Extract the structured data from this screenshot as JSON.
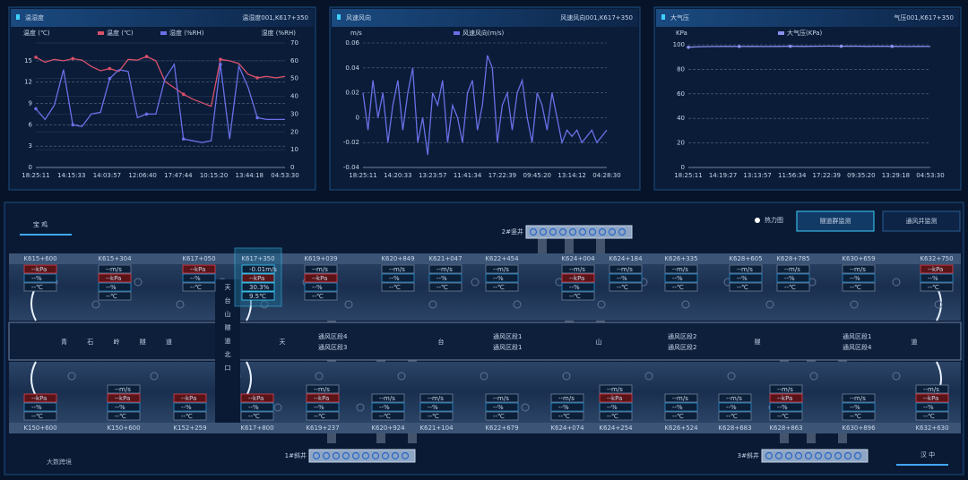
{
  "charts": [
    {
      "type": "line",
      "title": "温湿度",
      "device": "温湿度001,K617+350",
      "ylabel": "温度 (℃)",
      "y2label": "湿度 (%RH)",
      "xticks": [
        "18:25:11",
        "14:15:33",
        "14:03:57",
        "12:06:40",
        "17:47:44",
        "10:15:20",
        "13:44:18",
        "04:53:30"
      ],
      "ylim": [
        0,
        17.5
      ],
      "yticks": [
        0,
        3,
        6,
        9,
        12,
        15
      ],
      "y2lim": [
        0,
        70
      ],
      "y2ticks": [
        0,
        10,
        20,
        30,
        40,
        50,
        60,
        70
      ],
      "grid": true,
      "series": [
        {
          "name": "温度 (℃)",
          "color": "#d9506a",
          "values": [
            15.5,
            14.8,
            15.2,
            15,
            15.3,
            15.1,
            14.2,
            13.6,
            13.9,
            13.5,
            15.2,
            15.1,
            15.6,
            15.0,
            12.1,
            11.2,
            10.3,
            9.6,
            9.1,
            8.6,
            15.2,
            15.0,
            14.6,
            13.1,
            12.6,
            12.8,
            12.6,
            12.8
          ]
        },
        {
          "name": "湿度 (%RH)",
          "color": "#6a70e6",
          "axis": "y2",
          "values": [
            33,
            27,
            35,
            55,
            24,
            23,
            30,
            31,
            50,
            55,
            54,
            28,
            30,
            30,
            50,
            58,
            16,
            15,
            14,
            15,
            58,
            16,
            57,
            45,
            28,
            27,
            27,
            27
          ]
        }
      ]
    },
    {
      "type": "line",
      "title": "风速风向",
      "device": "风速风向001,K617+350",
      "ylabel": "m/s",
      "xticks": [
        "18:25:11",
        "14:20:33",
        "13:23:57",
        "11:41:34",
        "17:22:39",
        "09:45:20",
        "13:14:12",
        "04:28:30"
      ],
      "ylim": [
        -0.04,
        0.06
      ],
      "yticks": [
        -0.04,
        -0.02,
        0,
        0.02,
        0.04,
        0.06
      ],
      "grid": true,
      "series": [
        {
          "name": "风速风向(m/s)",
          "color": "#6a70e6",
          "values": [
            0.02,
            -0.01,
            0.03,
            0.0,
            0.02,
            -0.02,
            0.01,
            0.03,
            -0.01,
            0.02,
            0.04,
            -0.02,
            0.0,
            -0.03,
            0.02,
            0.01,
            0.03,
            -0.02,
            0.01,
            0.0,
            -0.02,
            0.02,
            0.03,
            -0.01,
            0.01,
            0.05,
            0.04,
            -0.02,
            0.01,
            0.02,
            -0.01,
            0.02,
            0.03,
            0.0,
            -0.02,
            0.02,
            0.01,
            -0.01,
            0.02,
            0.0,
            -0.02,
            -0.01,
            -0.015,
            -0.01,
            -0.02,
            -0.015,
            -0.01,
            -0.02,
            -0.015,
            -0.01
          ]
        }
      ]
    },
    {
      "type": "line",
      "title": "大气压",
      "device": "气压001,K617+350",
      "ylabel": "KPa",
      "xticks": [
        "18:25:11",
        "14:19:27",
        "13:13:57",
        "11:56:34",
        "17:22:39",
        "09:35:20",
        "13:29:18",
        "04:53:30"
      ],
      "ylim": [
        0,
        100
      ],
      "yticks": [
        0,
        20,
        40,
        60,
        80,
        100
      ],
      "grid": true,
      "series": [
        {
          "name": "大气压(KPa)",
          "color": "#8a90ee",
          "values": [
            98,
            98.5,
            98.6,
            98.7,
            98.6,
            98.7,
            98.6,
            98.7,
            98.8,
            98.7,
            98.8,
            98.9,
            98.8,
            98.9,
            98.7,
            98.8,
            98.7,
            98.6,
            98.7,
            98.6
          ]
        }
      ]
    }
  ],
  "map": {
    "left_city": "宝 鸡",
    "right_city": "汉 中",
    "heatmap": "热力图",
    "tabs": [
      "隧道群监测",
      "通风井监测"
    ],
    "tunnel_west": "青 石 岭 隧 道",
    "portal": "天台山隧道北口",
    "tunnel_main": [
      "天",
      "台",
      "山",
      "隧",
      "道"
    ],
    "shafts": [
      "2#竖井",
      "1#斜井",
      "3#斜井"
    ],
    "zones": [
      [
        "通风区段4",
        "通风区段3"
      ],
      [
        "通风区段1",
        "通风区段1"
      ],
      [
        "通风区段2",
        "通风区段2"
      ],
      [
        "通风区段1",
        "通风区段4"
      ]
    ],
    "top_stations": [
      {
        "km": "K615+600",
        "readings": [
          "--kPa",
          "--%",
          "--℃"
        ]
      },
      {
        "km": "K615+304",
        "readings": [
          "--m/s",
          "--kPa",
          "--%",
          "--℃"
        ]
      },
      {
        "km": "K617+050",
        "readings": [
          "--kPa",
          "--%",
          "--℃"
        ]
      },
      {
        "km": "K617+350",
        "readings": [
          "-0.01m/s",
          "--kPa",
          "30.3%",
          "9.5℃"
        ]
      },
      {
        "km": "K619+039",
        "readings": [
          "--m/s",
          "--kPa",
          "--%",
          "--℃"
        ]
      },
      {
        "km": "K620+849",
        "readings": [
          "--m/s",
          "--%",
          "--℃"
        ]
      },
      {
        "km": "K621+047",
        "readings": [
          "--m/s",
          "--%",
          "--℃"
        ]
      },
      {
        "km": "K622+454",
        "readings": [
          "--m/s",
          "--%",
          "--℃"
        ]
      },
      {
        "km": "K624+004",
        "readings": [
          "--m/s",
          "--kPa",
          "--%",
          "--℃"
        ]
      },
      {
        "km": "K624+184",
        "readings": [
          "--m/s",
          "--%",
          "--℃"
        ]
      },
      {
        "km": "K626+335",
        "readings": [
          "--m/s",
          "--%",
          "--℃"
        ]
      },
      {
        "km": "K628+605",
        "readings": [
          "--m/s",
          "--%",
          "--℃"
        ]
      },
      {
        "km": "K628+785",
        "readings": [
          "--m/s",
          "--%",
          "--℃"
        ]
      },
      {
        "km": "K630+659",
        "readings": [
          "--m/s",
          "--%",
          "--℃"
        ]
      },
      {
        "km": "K632+750",
        "readings": [
          "--kPa",
          "--%",
          "--℃"
        ]
      }
    ],
    "bottom_stations": [
      {
        "km": "K150+600",
        "readings": [
          "--kPa",
          "--%",
          "--℃"
        ]
      },
      {
        "km": "K150+600",
        "readings": [
          "--m/s",
          "--kPa",
          "--%",
          "--℃"
        ]
      },
      {
        "km": "K152+259",
        "readings": [
          "--kPa",
          "--%",
          "--℃"
        ]
      },
      {
        "km": "K617+800",
        "readings": [
          "--kPa",
          "--%",
          "--℃"
        ]
      },
      {
        "km": "K619+237",
        "readings": [
          "--m/s",
          "--kPa",
          "--%",
          "--℃"
        ]
      },
      {
        "km": "K620+924",
        "readings": [
          "--m/s",
          "--%",
          "--℃"
        ]
      },
      {
        "km": "K621+104",
        "readings": [
          "--m/s",
          "--%",
          "--℃"
        ]
      },
      {
        "km": "K622+679",
        "readings": [
          "--m/s",
          "--%",
          "--℃"
        ]
      },
      {
        "km": "K624+074",
        "readings": [
          "--m/s",
          "--%",
          "--℃"
        ]
      },
      {
        "km": "K624+254",
        "readings": [
          "--m/s",
          "--kPa",
          "--%",
          "--℃"
        ]
      },
      {
        "km": "K626+524",
        "readings": [
          "--m/s",
          "--%",
          "--℃"
        ]
      },
      {
        "km": "K628+683",
        "readings": [
          "--m/s",
          "--%",
          "--℃"
        ]
      },
      {
        "km": "K628+863",
        "readings": [
          "--m/s",
          "--kPa",
          "--%",
          "--℃"
        ]
      },
      {
        "km": "K630+896",
        "readings": [
          "--m/s",
          "--%",
          "--℃"
        ]
      },
      {
        "km": "K632+630",
        "readings": [
          "--m/s",
          "--kPa",
          "--%",
          "--℃"
        ]
      }
    ],
    "watermark": "大数跨境"
  }
}
